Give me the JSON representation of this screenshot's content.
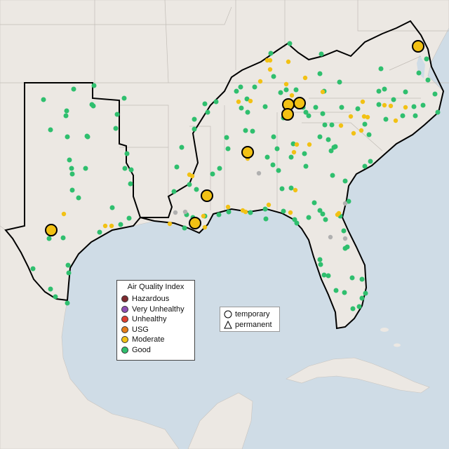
{
  "legend": {
    "title": "Air Quality Index",
    "items": [
      {
        "label": "Hazardous",
        "color": "#7e2a2f"
      },
      {
        "label": "Very Unhealthy",
        "color": "#8f4fb3"
      },
      {
        "label": "Unhealthy",
        "color": "#e04030"
      },
      {
        "label": "USG",
        "color": "#e67e1a"
      },
      {
        "label": "Moderate",
        "color": "#f2c114"
      },
      {
        "label": "Good",
        "color": "#2fbf6e"
      }
    ]
  },
  "shape_legend": {
    "temporary": "temporary",
    "permanent": "permanent"
  },
  "colors": {
    "land": "#ece8e3",
    "water": "#cfdce6",
    "noData": "#b0b0b0",
    "good": "#2fbf6e",
    "moderate": "#f2c114"
  }
}
